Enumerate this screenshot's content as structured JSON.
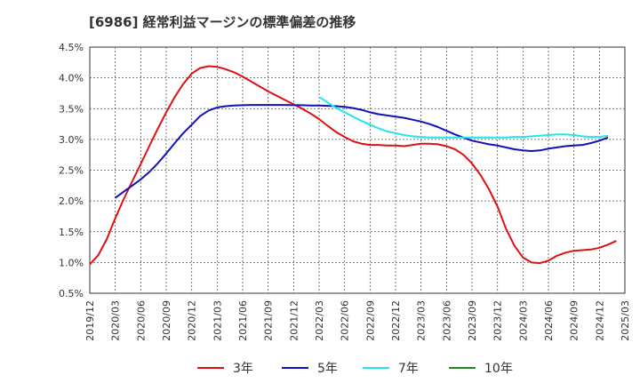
{
  "chart_data": {
    "type": "line",
    "title": "[6986]  経常利益マージンの標準偏差の推移",
    "xlabel": "",
    "ylabel": "",
    "ylim": [
      0.5,
      4.5
    ],
    "yticks": [
      "0.5%",
      "1.0%",
      "1.5%",
      "2.0%",
      "2.5%",
      "3.0%",
      "3.5%",
      "4.0%",
      "4.5%"
    ],
    "xticks": [
      "2019/12",
      "2020/03",
      "2020/06",
      "2020/09",
      "2020/12",
      "2021/03",
      "2021/06",
      "2021/09",
      "2021/12",
      "2022/03",
      "2022/06",
      "2022/09",
      "2022/12",
      "2023/03",
      "2023/06",
      "2023/09",
      "2023/12",
      "2024/03",
      "2024/06",
      "2024/09",
      "2024/12",
      "2025/03"
    ],
    "grid": true,
    "legend_position": "bottom",
    "series": [
      {
        "name": "3年",
        "color": "#dd1111",
        "points": [
          [
            "2019/12",
            0.97
          ],
          [
            "2020/01",
            1.12
          ],
          [
            "2020/02",
            1.38
          ],
          [
            "2020/03",
            1.72
          ],
          [
            "2020/04",
            2.03
          ],
          [
            "2020/05",
            2.32
          ],
          [
            "2020/06",
            2.6
          ],
          [
            "2020/07",
            2.89
          ],
          [
            "2020/08",
            3.17
          ],
          [
            "2020/09",
            3.44
          ],
          [
            "2020/10",
            3.69
          ],
          [
            "2020/11",
            3.9
          ],
          [
            "2020/12",
            4.07
          ],
          [
            "2021/01",
            4.16
          ],
          [
            "2021/02",
            4.19
          ],
          [
            "2021/03",
            4.18
          ],
          [
            "2021/04",
            4.14
          ],
          [
            "2021/05",
            4.09
          ],
          [
            "2021/06",
            4.02
          ],
          [
            "2021/07",
            3.94
          ],
          [
            "2021/08",
            3.86
          ],
          [
            "2021/09",
            3.78
          ],
          [
            "2021/10",
            3.71
          ],
          [
            "2021/11",
            3.64
          ],
          [
            "2021/12",
            3.57
          ],
          [
            "2022/01",
            3.5
          ],
          [
            "2022/02",
            3.42
          ],
          [
            "2022/03",
            3.33
          ],
          [
            "2022/04",
            3.22
          ],
          [
            "2022/05",
            3.12
          ],
          [
            "2022/06",
            3.04
          ],
          [
            "2022/07",
            2.97
          ],
          [
            "2022/08",
            2.93
          ],
          [
            "2022/09",
            2.91
          ],
          [
            "2022/10",
            2.91
          ],
          [
            "2022/11",
            2.9
          ],
          [
            "2022/12",
            2.9
          ],
          [
            "2023/01",
            2.89
          ],
          [
            "2023/02",
            2.91
          ],
          [
            "2023/03",
            2.93
          ],
          [
            "2023/04",
            2.93
          ],
          [
            "2023/05",
            2.92
          ],
          [
            "2023/06",
            2.89
          ],
          [
            "2023/07",
            2.84
          ],
          [
            "2023/08",
            2.75
          ],
          [
            "2023/09",
            2.61
          ],
          [
            "2023/10",
            2.42
          ],
          [
            "2023/11",
            2.19
          ],
          [
            "2023/12",
            1.91
          ],
          [
            "2024/01",
            1.55
          ],
          [
            "2024/02",
            1.27
          ],
          [
            "2024/03",
            1.08
          ],
          [
            "2024/04",
            1.0
          ],
          [
            "2024/05",
            0.99
          ],
          [
            "2024/06",
            1.03
          ],
          [
            "2024/07",
            1.11
          ],
          [
            "2024/08",
            1.16
          ],
          [
            "2024/09",
            1.19
          ],
          [
            "2024/10",
            1.2
          ],
          [
            "2024/11",
            1.21
          ],
          [
            "2024/12",
            1.24
          ],
          [
            "2025/01",
            1.29
          ],
          [
            "2025/02",
            1.35
          ]
        ]
      },
      {
        "name": "5年",
        "color": "#1111bb",
        "points": [
          [
            "2020/03",
            2.05
          ],
          [
            "2020/04",
            2.15
          ],
          [
            "2020/05",
            2.25
          ],
          [
            "2020/06",
            2.35
          ],
          [
            "2020/07",
            2.47
          ],
          [
            "2020/08",
            2.61
          ],
          [
            "2020/09",
            2.77
          ],
          [
            "2020/10",
            2.94
          ],
          [
            "2020/11",
            3.1
          ],
          [
            "2020/12",
            3.24
          ],
          [
            "2021/01",
            3.38
          ],
          [
            "2021/02",
            3.47
          ],
          [
            "2021/03",
            3.52
          ],
          [
            "2021/04",
            3.54
          ],
          [
            "2021/05",
            3.55
          ],
          [
            "2021/06",
            3.555
          ],
          [
            "2021/07",
            3.56
          ],
          [
            "2021/08",
            3.56
          ],
          [
            "2021/09",
            3.56
          ],
          [
            "2021/10",
            3.56
          ],
          [
            "2021/11",
            3.56
          ],
          [
            "2021/12",
            3.555
          ],
          [
            "2022/01",
            3.555
          ],
          [
            "2022/02",
            3.55
          ],
          [
            "2022/03",
            3.55
          ],
          [
            "2022/04",
            3.545
          ],
          [
            "2022/05",
            3.54
          ],
          [
            "2022/06",
            3.53
          ],
          [
            "2022/07",
            3.51
          ],
          [
            "2022/08",
            3.48
          ],
          [
            "2022/09",
            3.44
          ],
          [
            "2022/10",
            3.41
          ],
          [
            "2022/11",
            3.39
          ],
          [
            "2022/12",
            3.37
          ],
          [
            "2023/01",
            3.35
          ],
          [
            "2023/02",
            3.32
          ],
          [
            "2023/03",
            3.29
          ],
          [
            "2023/04",
            3.25
          ],
          [
            "2023/05",
            3.2
          ],
          [
            "2023/06",
            3.14
          ],
          [
            "2023/07",
            3.08
          ],
          [
            "2023/08",
            3.03
          ],
          [
            "2023/09",
            2.98
          ],
          [
            "2023/10",
            2.95
          ],
          [
            "2023/11",
            2.92
          ],
          [
            "2023/12",
            2.9
          ],
          [
            "2024/01",
            2.87
          ],
          [
            "2024/02",
            2.84
          ],
          [
            "2024/03",
            2.82
          ],
          [
            "2024/04",
            2.81
          ],
          [
            "2024/05",
            2.82
          ],
          [
            "2024/06",
            2.85
          ],
          [
            "2024/07",
            2.87
          ],
          [
            "2024/08",
            2.89
          ],
          [
            "2024/09",
            2.9
          ],
          [
            "2024/10",
            2.91
          ],
          [
            "2024/11",
            2.94
          ],
          [
            "2024/12",
            2.98
          ],
          [
            "2025/01",
            3.03
          ]
        ]
      },
      {
        "name": "7年",
        "color": "#22e5ee",
        "points": [
          [
            "2022/03",
            3.69
          ],
          [
            "2022/04",
            3.6
          ],
          [
            "2022/05",
            3.51
          ],
          [
            "2022/06",
            3.44
          ],
          [
            "2022/07",
            3.37
          ],
          [
            "2022/08",
            3.3
          ],
          [
            "2022/09",
            3.24
          ],
          [
            "2022/10",
            3.18
          ],
          [
            "2022/11",
            3.13
          ],
          [
            "2022/12",
            3.1
          ],
          [
            "2023/01",
            3.07
          ],
          [
            "2023/02",
            3.05
          ],
          [
            "2023/03",
            3.04
          ],
          [
            "2023/04",
            3.03
          ],
          [
            "2023/05",
            3.03
          ],
          [
            "2023/06",
            3.03
          ],
          [
            "2023/07",
            3.03
          ],
          [
            "2023/08",
            3.03
          ],
          [
            "2023/09",
            3.03
          ],
          [
            "2023/10",
            3.03
          ],
          [
            "2023/11",
            3.03
          ],
          [
            "2023/12",
            3.03
          ],
          [
            "2024/01",
            3.03
          ],
          [
            "2024/02",
            3.04
          ],
          [
            "2024/03",
            3.04
          ],
          [
            "2024/04",
            3.05
          ],
          [
            "2024/05",
            3.06
          ],
          [
            "2024/06",
            3.07
          ],
          [
            "2024/07",
            3.08
          ],
          [
            "2024/08",
            3.08
          ],
          [
            "2024/09",
            3.07
          ],
          [
            "2024/10",
            3.05
          ],
          [
            "2024/11",
            3.04
          ],
          [
            "2024/12",
            3.04
          ],
          [
            "2025/01",
            3.06
          ]
        ]
      },
      {
        "name": "10年",
        "color": "#228822",
        "points": []
      }
    ]
  }
}
